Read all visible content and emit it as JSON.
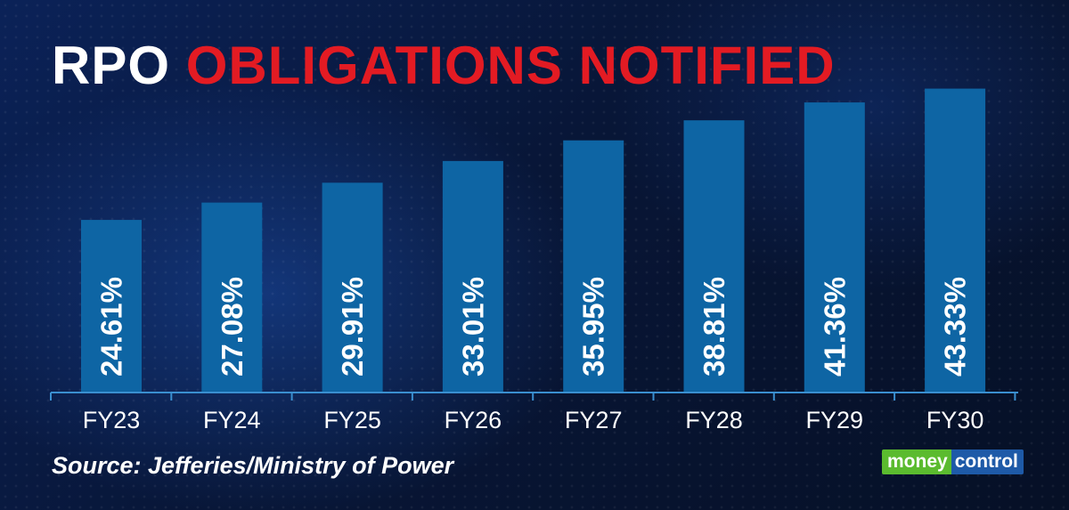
{
  "title": {
    "part1": "RPO",
    "part2": "OBLIGATIONS NOTIFIED"
  },
  "source": "Source: Jefferies/Ministry of Power",
  "logo": {
    "part1": "money",
    "part2": "control"
  },
  "colors": {
    "bar": "#0e65a4",
    "axis": "#3a8fd0",
    "title_accent": "#e31b23",
    "text": "#ffffff"
  },
  "chart_data": {
    "type": "bar",
    "categories": [
      "FY23",
      "FY24",
      "FY25",
      "FY26",
      "FY27",
      "FY28",
      "FY29",
      "FY30"
    ],
    "values": [
      24.61,
      27.08,
      29.91,
      33.01,
      35.95,
      38.81,
      41.36,
      43.33
    ],
    "value_labels": [
      "24.61%",
      "27.08%",
      "29.91%",
      "33.01%",
      "35.95%",
      "38.81%",
      "41.36%",
      "43.33%"
    ],
    "title": "RPO OBLIGATIONS NOTIFIED",
    "xlabel": "",
    "ylabel": "",
    "grid": false,
    "legend": "none"
  }
}
